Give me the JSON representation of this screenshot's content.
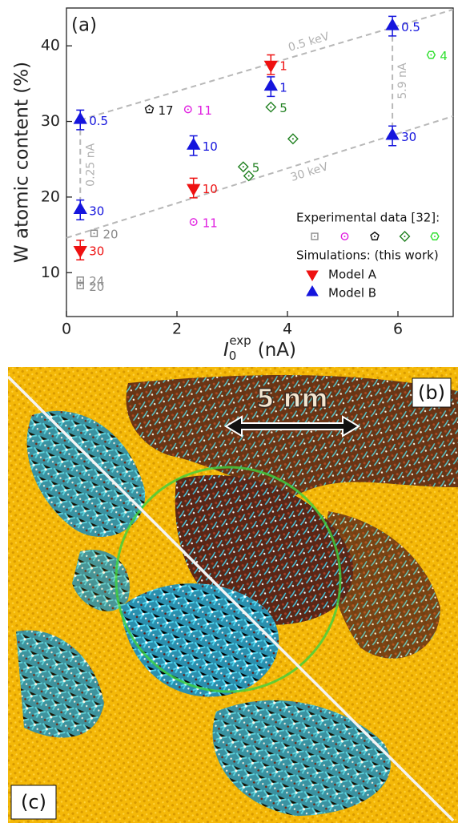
{
  "chart_data": {
    "type": "scatter",
    "panel_label": "(a)",
    "xlabel": {
      "main": "I",
      "sub": "0",
      "sup": "exp",
      "unit": "(nA)"
    },
    "ylabel": "W atomic content (%)",
    "xlim": [
      0,
      7
    ],
    "ylim": [
      4.2,
      45
    ],
    "xticks": [
      0,
      2,
      4,
      6
    ],
    "yticks": [
      10,
      20,
      30,
      40
    ],
    "legend_title_experimental": "Experimental data [32]:",
    "legend_title_simulations": "Simulations: (this work)",
    "series": [
      {
        "marker": "square",
        "color": "#8c8c8c",
        "x": [
          0.5,
          0.25,
          0.25
        ],
        "values": [
          15.2,
          8.3,
          9.0
        ],
        "point_labels": [
          "20",
          "20",
          "24"
        ]
      },
      {
        "marker": "circle",
        "color": "#e020e0",
        "x": [
          2.2,
          2.3
        ],
        "values": [
          31.6,
          16.7
        ],
        "point_labels": [
          "11",
          "11"
        ]
      },
      {
        "marker": "pentagon",
        "color": "#111111",
        "x": [
          1.5
        ],
        "values": [
          31.6
        ],
        "point_labels": [
          "17"
        ]
      },
      {
        "marker": "diamond",
        "color": "#208020",
        "x": [
          3.7,
          3.2,
          3.3,
          4.1
        ],
        "values": [
          31.9,
          24.0,
          22.8,
          27.7
        ],
        "point_labels": [
          "5",
          "5",
          null,
          null
        ]
      },
      {
        "marker": "hexagon",
        "color": "#30e030",
        "x": [
          6.6
        ],
        "values": [
          38.8
        ],
        "point_labels": [
          "4"
        ]
      },
      {
        "name": "Model A",
        "marker": "triangle-down",
        "color": "#ee1111",
        "x": [
          0.25,
          2.3,
          3.7
        ],
        "values": [
          13.0,
          21.2,
          37.5
        ],
        "errors": [
          1.3,
          1.3,
          1.3
        ],
        "point_labels": [
          "30",
          "10",
          "1"
        ]
      },
      {
        "name": "Model B",
        "marker": "triangle-up",
        "color": "#1515dd",
        "x": [
          0.25,
          0.25,
          2.3,
          3.7,
          5.9,
          5.9
        ],
        "values": [
          30.2,
          18.3,
          26.8,
          34.6,
          42.6,
          28.1
        ],
        "errors": [
          1.3,
          1.3,
          1.3,
          1.3,
          1.3,
          1.3
        ],
        "point_labels": [
          "0.5",
          "30",
          "10",
          "1",
          "0.5",
          "30"
        ]
      }
    ],
    "guides": [
      {
        "label": "0.5 keV",
        "x": [
          0.25,
          7
        ],
        "y": [
          30.2,
          44.8
        ]
      },
      {
        "label": "30 keV",
        "x": [
          0,
          7
        ],
        "y": [
          14.6,
          30.7
        ]
      },
      {
        "label": "0.25 nA",
        "x": [
          0.25,
          0.25
        ],
        "y": [
          28.9,
          19.6
        ]
      },
      {
        "label": "5.9 nA",
        "x": [
          5.9,
          5.9
        ],
        "y": [
          41.3,
          29.4
        ]
      }
    ]
  },
  "image": {
    "panel_b": "(b)",
    "panel_c": "(c)",
    "scale_bar": "5 nm"
  }
}
